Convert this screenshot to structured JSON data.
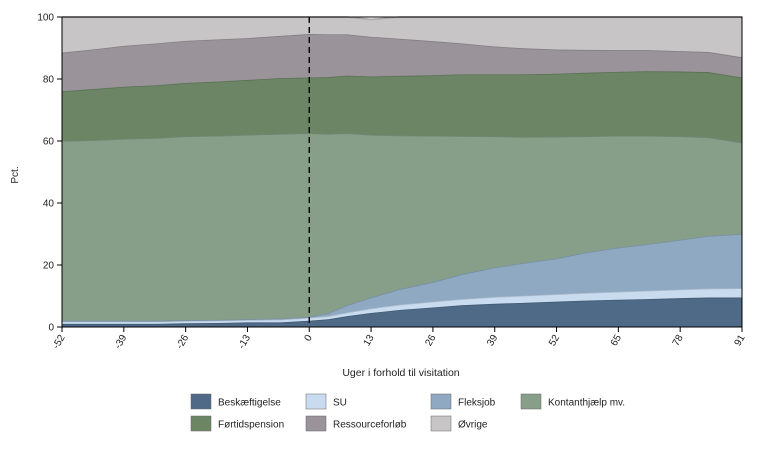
{
  "chart_data": {
    "type": "area",
    "stacked": true,
    "xlabel": "Uger i forhold til visitation",
    "ylabel": "Pct.",
    "xlim": [
      -52,
      91
    ],
    "ylim": [
      0,
      100
    ],
    "xticks": [
      -52,
      -39,
      -26,
      -13,
      0,
      13,
      26,
      39,
      52,
      65,
      78,
      91
    ],
    "yticks": [
      0,
      20,
      40,
      60,
      80,
      100
    ],
    "grid": true,
    "vline_x": 0,
    "legend_position": "bottom",
    "x": [
      -52,
      -45,
      -39,
      -32,
      -26,
      -19,
      -13,
      -6,
      0,
      4,
      8,
      13,
      19,
      26,
      32,
      39,
      45,
      52,
      58,
      65,
      71,
      78,
      84,
      91
    ],
    "series": [
      {
        "name": "Beskæftigelse",
        "color": "#4e6a87",
        "values": [
          1.0,
          1.0,
          1.0,
          1.0,
          1.2,
          1.3,
          1.5,
          1.5,
          2.0,
          2.5,
          3.5,
          4.5,
          5.5,
          6.3,
          7.0,
          7.5,
          7.8,
          8.2,
          8.5,
          8.8,
          9.0,
          9.3,
          9.5,
          9.5
        ]
      },
      {
        "name": "SU",
        "color": "#c9dcef",
        "values": [
          0.8,
          0.8,
          0.8,
          0.8,
          0.8,
          0.8,
          0.8,
          0.9,
          1.0,
          1.0,
          1.2,
          1.5,
          1.7,
          1.9,
          2.0,
          2.2,
          2.3,
          2.4,
          2.5,
          2.6,
          2.7,
          2.8,
          2.9,
          3.0
        ]
      },
      {
        "name": "Fleksjob",
        "color": "#8ea9c1",
        "values": [
          0.2,
          0.2,
          0.2,
          0.2,
          0.2,
          0.2,
          0.2,
          0.3,
          0.3,
          1.0,
          2.3,
          3.5,
          5.0,
          6.3,
          8.0,
          9.5,
          10.5,
          11.5,
          13.0,
          14.2,
          15.0,
          16.0,
          17.0,
          17.5
        ]
      },
      {
        "name": "Kontanthjælp mv.",
        "color": "#879e89",
        "values": [
          58.0,
          58.3,
          58.7,
          59.0,
          59.3,
          59.4,
          59.5,
          59.6,
          59.2,
          57.8,
          55.5,
          52.5,
          49.6,
          47.2,
          44.6,
          42.3,
          40.7,
          39.3,
          37.5,
          36.1,
          35.0,
          33.4,
          31.8,
          29.5
        ]
      },
      {
        "name": "Førtidspension",
        "color": "#6b8565",
        "values": [
          16.0,
          16.5,
          16.8,
          17.0,
          17.2,
          17.5,
          17.7,
          18.0,
          18.0,
          18.3,
          18.6,
          18.8,
          19.2,
          19.5,
          19.9,
          20.0,
          20.2,
          20.3,
          20.5,
          20.6,
          20.8,
          20.9,
          21.0,
          21.0
        ]
      },
      {
        "name": "Ressourceforløb",
        "color": "#9a949a",
        "values": [
          12.5,
          12.8,
          13.2,
          13.5,
          13.6,
          13.6,
          13.5,
          13.6,
          14.0,
          13.8,
          13.3,
          12.8,
          12.0,
          11.0,
          10.0,
          9.0,
          8.4,
          7.8,
          7.4,
          7.0,
          6.8,
          6.6,
          6.5,
          6.5
        ]
      },
      {
        "name": "Øvrige",
        "color": "#c8c5c6",
        "values": [
          11.5,
          10.4,
          9.3,
          8.5,
          7.7,
          7.2,
          6.8,
          6.1,
          5.5,
          5.6,
          5.6,
          5.6,
          7.0,
          7.8,
          8.5,
          9.5,
          10.1,
          10.5,
          10.6,
          10.7,
          10.7,
          11.0,
          11.3,
          13.0
        ]
      }
    ]
  }
}
